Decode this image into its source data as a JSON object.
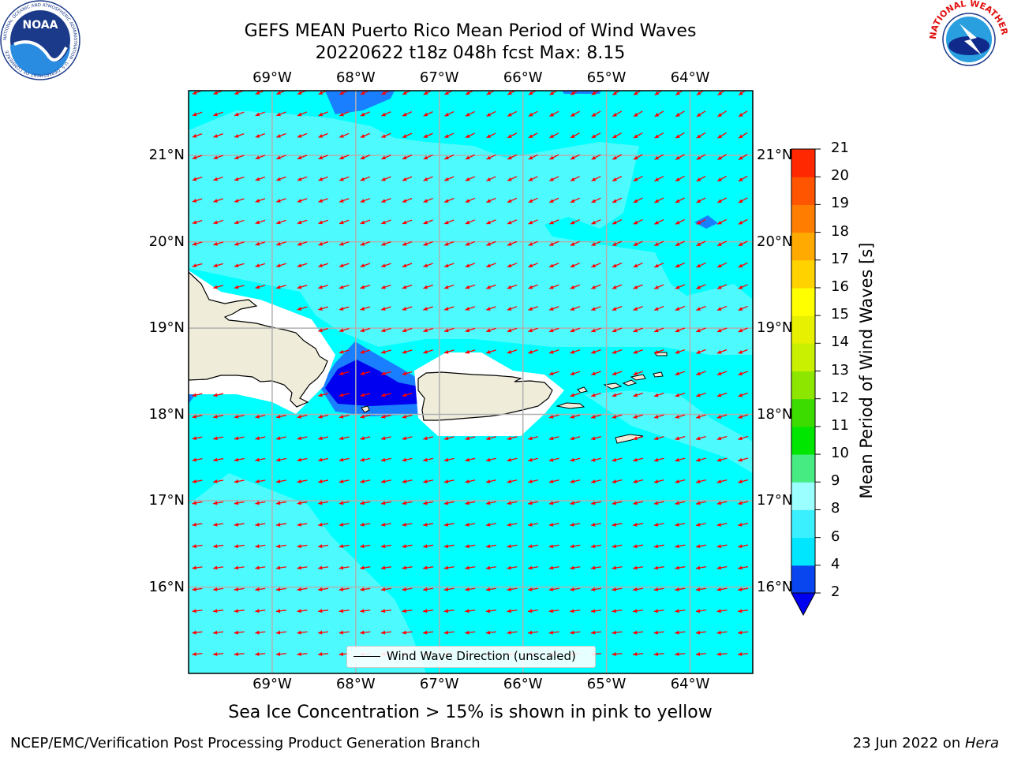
{
  "header": {
    "title_line1": "GEFS MEAN Puerto Rico Mean Period of Wind Waves",
    "title_line2": "20220622 t18z 048h fcst   Max: 8.15"
  },
  "logos": {
    "left": {
      "name": "noaa-logo",
      "text": "NOAA",
      "ring_text": "NATIONAL OCEANIC AND ATMOSPHERIC ADMINISTRATION · U.S. DEPARTMENT OF COMMERCE"
    },
    "right": {
      "name": "nws-logo",
      "ring_text": "NATIONAL WEATHER SERVICE"
    }
  },
  "axes": {
    "lon_labels": [
      "69°W",
      "68°W",
      "67°W",
      "66°W",
      "65°W",
      "64°W"
    ],
    "lat_labels": [
      "21°N",
      "20°N",
      "19°N",
      "18°N",
      "17°N",
      "16°N"
    ],
    "lon_values": [
      -69,
      -68,
      -67,
      -66,
      -65,
      -64
    ],
    "lat_values": [
      21,
      20,
      19,
      18,
      17,
      16
    ],
    "lon_range": [
      -70.0,
      -63.25
    ],
    "lat_range": [
      15.0,
      21.75
    ]
  },
  "colorbar": {
    "label": "Mean Period of Wind Waves [s]",
    "ticks": [
      "2",
      "4",
      "6",
      "8",
      "9",
      "10",
      "11",
      "12",
      "13",
      "14",
      "15",
      "16",
      "17",
      "18",
      "19",
      "20",
      "21"
    ],
    "colors": [
      "#0a46f0",
      "#00e6ff",
      "#3af0ff",
      "#9bffff",
      "#46eb82",
      "#00e600",
      "#3cdc00",
      "#8ce600",
      "#c8f000",
      "#e6f000",
      "#ffff00",
      "#ffd200",
      "#ffaa00",
      "#ff7d00",
      "#ff5500",
      "#ff2800",
      "#ff0000"
    ],
    "under_color": "#0000f0",
    "extend": "min"
  },
  "map_colors": {
    "sea_6_8": "#00ffff",
    "sea_6_8_light": "#4dfbff",
    "band_4_6": "#1a7fff",
    "band_2_4": "#0000f0",
    "land": "#efedda",
    "masked": "#ffffff",
    "arrow": "#ff0000",
    "grid": "#b0b0b0"
  },
  "legend": {
    "text": "Wind Wave Direction (unscaled)"
  },
  "notes": {
    "sea_ice": "Sea Ice Concentration > 15% is shown in pink to yellow",
    "footer_left": "NCEP/EMC/Verification Post Processing Product Generation Branch",
    "footer_date": "23 Jun 2022 on ",
    "footer_host": "Hera"
  }
}
